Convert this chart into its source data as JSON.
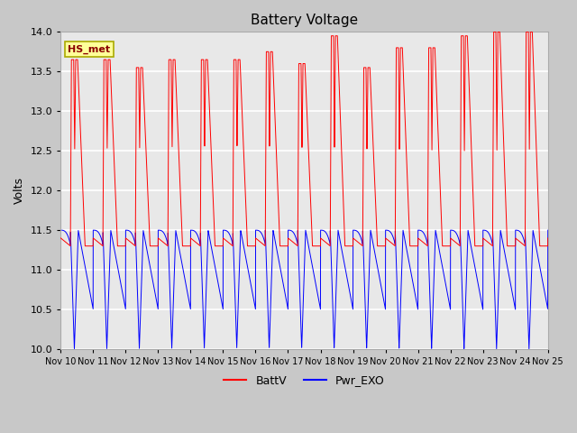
{
  "title": "Battery Voltage",
  "ylabel": "Volts",
  "ylim": [
    10.0,
    14.0
  ],
  "yticks": [
    10.0,
    10.5,
    11.0,
    11.5,
    12.0,
    12.5,
    13.0,
    13.5,
    14.0
  ],
  "fig_bg_color": "#c8c8c8",
  "plot_bg_color": "#e8e8e8",
  "grid_color": "white",
  "line1_color": "red",
  "line2_color": "blue",
  "line1_label": "BattV",
  "line2_label": "Pwr_EXO",
  "station_label": "HS_met",
  "x_tick_labels": [
    "Nov 10",
    "Nov 11",
    "Nov 12",
    "Nov 13",
    "Nov 14",
    "Nov 15",
    "Nov 16",
    "Nov 17",
    "Nov 18",
    "Nov 19",
    "Nov 20",
    "Nov 21",
    "Nov 22",
    "Nov 23",
    "Nov 24",
    "Nov 25"
  ],
  "num_days": 15,
  "start_day": 10,
  "label_box_facecolor": "#ffff99",
  "label_box_edgecolor": "#aaaa00",
  "label_text_color": "#8b0000"
}
